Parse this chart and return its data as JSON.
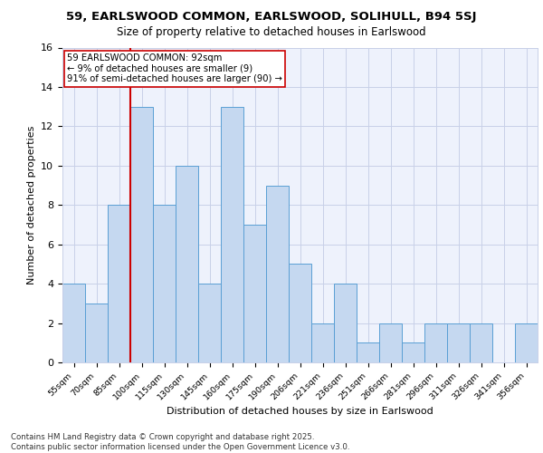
{
  "title_line1": "59, EARLSWOOD COMMON, EARLSWOOD, SOLIHULL, B94 5SJ",
  "title_line2": "Size of property relative to detached houses in Earlswood",
  "xlabel": "Distribution of detached houses by size in Earlswood",
  "ylabel": "Number of detached properties",
  "categories": [
    "55sqm",
    "70sqm",
    "85sqm",
    "100sqm",
    "115sqm",
    "130sqm",
    "145sqm",
    "160sqm",
    "175sqm",
    "190sqm",
    "206sqm",
    "221sqm",
    "236sqm",
    "251sqm",
    "266sqm",
    "281sqm",
    "296sqm",
    "311sqm",
    "326sqm",
    "341sqm",
    "356sqm"
  ],
  "values": [
    4,
    3,
    8,
    13,
    8,
    10,
    4,
    13,
    7,
    9,
    5,
    2,
    4,
    1,
    2,
    1,
    2,
    2,
    2,
    0,
    2
  ],
  "bar_color": "#c5d8f0",
  "bar_edge_color": "#5a9fd4",
  "vline_x_index": 2.5,
  "vline_color": "#cc0000",
  "annotation_text": "59 EARLSWOOD COMMON: 92sqm\n← 9% of detached houses are smaller (9)\n91% of semi-detached houses are larger (90) →",
  "annotation_box_color": "#ffffff",
  "annotation_box_edge": "#cc0000",
  "ylim": [
    0,
    16
  ],
  "yticks": [
    0,
    2,
    4,
    6,
    8,
    10,
    12,
    14,
    16
  ],
  "footnote": "Contains HM Land Registry data © Crown copyright and database right 2025.\nContains public sector information licensed under the Open Government Licence v3.0.",
  "bg_color": "#eef2fc",
  "grid_color": "#c8d0e8"
}
